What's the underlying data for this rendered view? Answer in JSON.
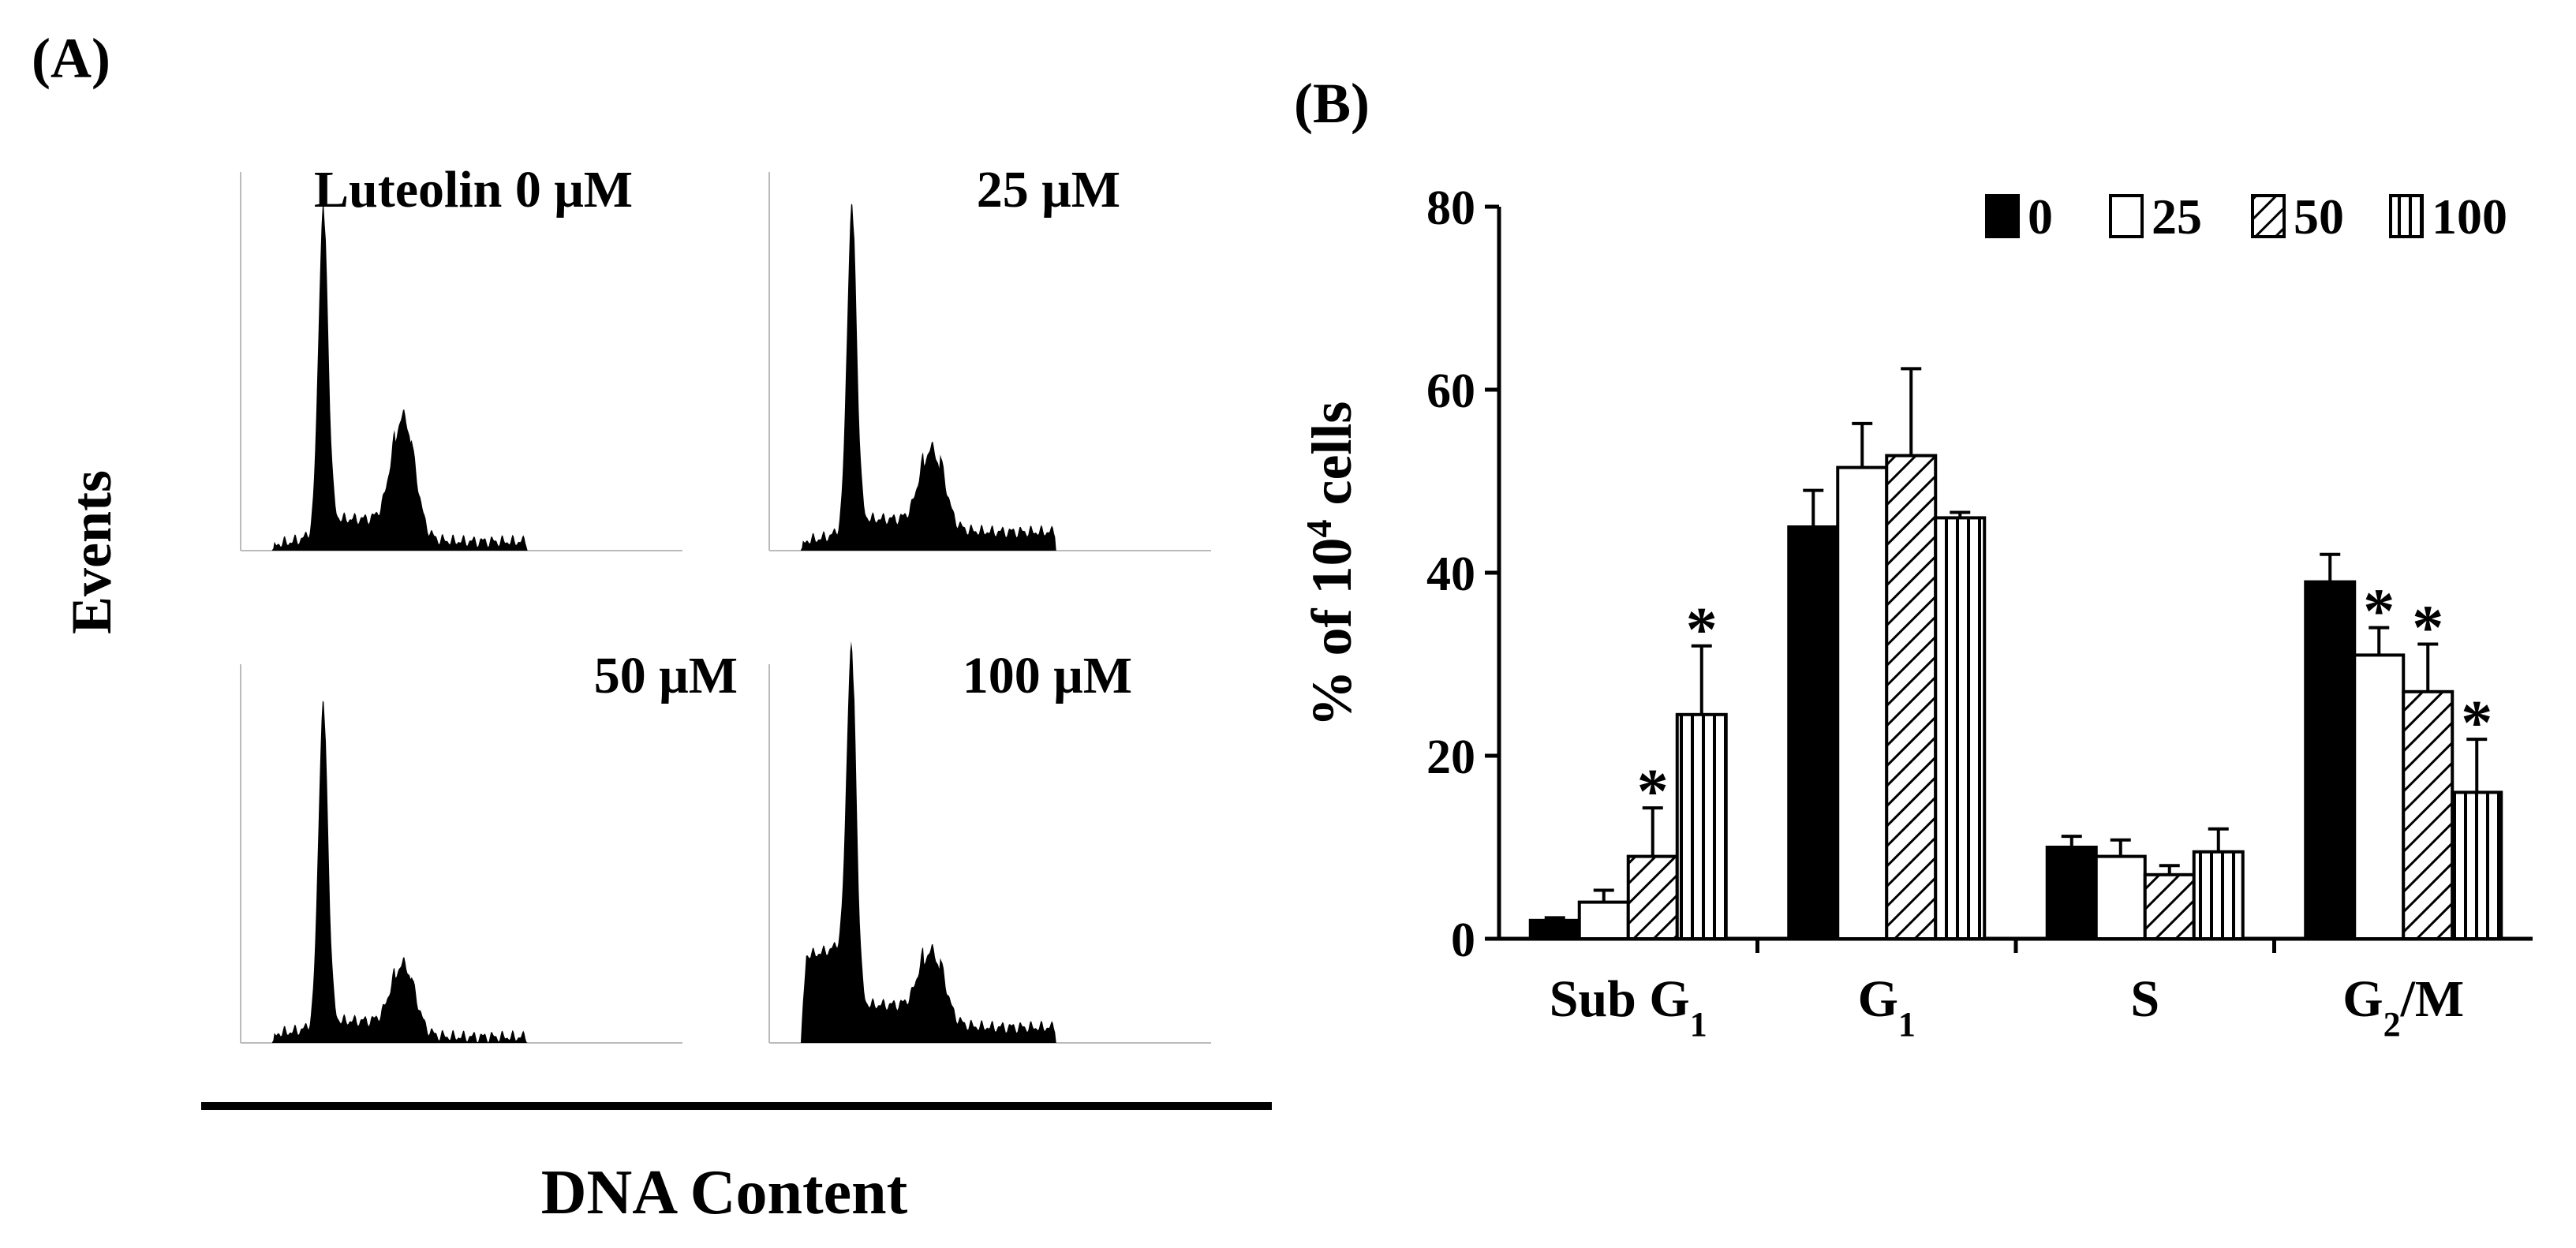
{
  "panel_a": {
    "label": "(A)",
    "y_label": "Events",
    "x_label": "DNA Content",
    "histograms": [
      {
        "label": "Luteolin 0 μM",
        "g1_peak": 1.0,
        "g2m_peak": 0.38,
        "subg1_level": 0.02,
        "s_level": 0.1,
        "tail": 0.03
      },
      {
        "label": "25 μM",
        "g1_peak": 1.0,
        "g2m_peak": 0.28,
        "subg1_level": 0.03,
        "s_level": 0.1,
        "tail": 0.06
      },
      {
        "label": "50 μM",
        "g1_peak": 1.0,
        "g2m_peak": 0.22,
        "subg1_level": 0.03,
        "s_level": 0.07,
        "tail": 0.02
      },
      {
        "label": "100 μM",
        "g1_peak": 1.0,
        "g2m_peak": 0.24,
        "subg1_level": 0.27,
        "s_level": 0.12,
        "tail": 0.05
      }
    ]
  },
  "panel_b": {
    "label": "(B)"
  },
  "chart_data": {
    "type": "bar",
    "title": "",
    "xlabel": "",
    "ylabel": "% of 10⁴ cells",
    "ylim": [
      0,
      80
    ],
    "yticks": [
      0,
      20,
      40,
      60,
      80
    ],
    "categories": [
      "Sub G₁",
      "G₁",
      "S",
      "G₂/M"
    ],
    "legend_position": "top-right",
    "series": [
      {
        "name": "0",
        "pattern": "solid",
        "values": [
          2,
          45,
          10,
          39
        ],
        "errors": [
          0.3,
          4,
          1.2,
          3
        ],
        "significant": [
          false,
          false,
          false,
          false
        ]
      },
      {
        "name": "25",
        "pattern": "open",
        "values": [
          4,
          51.5,
          9,
          31
        ],
        "errors": [
          1.3,
          4.8,
          1.8,
          3
        ],
        "significant": [
          false,
          false,
          false,
          true
        ]
      },
      {
        "name": "50",
        "pattern": "diagonal",
        "values": [
          9,
          52.8,
          7,
          27
        ],
        "errors": [
          5.3,
          9.5,
          1,
          5.2
        ],
        "significant": [
          true,
          false,
          false,
          true
        ]
      },
      {
        "name": "100",
        "pattern": "vertical",
        "values": [
          24.5,
          46,
          9.5,
          16
        ],
        "errors": [
          7.5,
          0.6,
          2.5,
          5.8
        ],
        "significant": [
          true,
          false,
          false,
          true
        ]
      }
    ],
    "significance_marker": "*"
  }
}
